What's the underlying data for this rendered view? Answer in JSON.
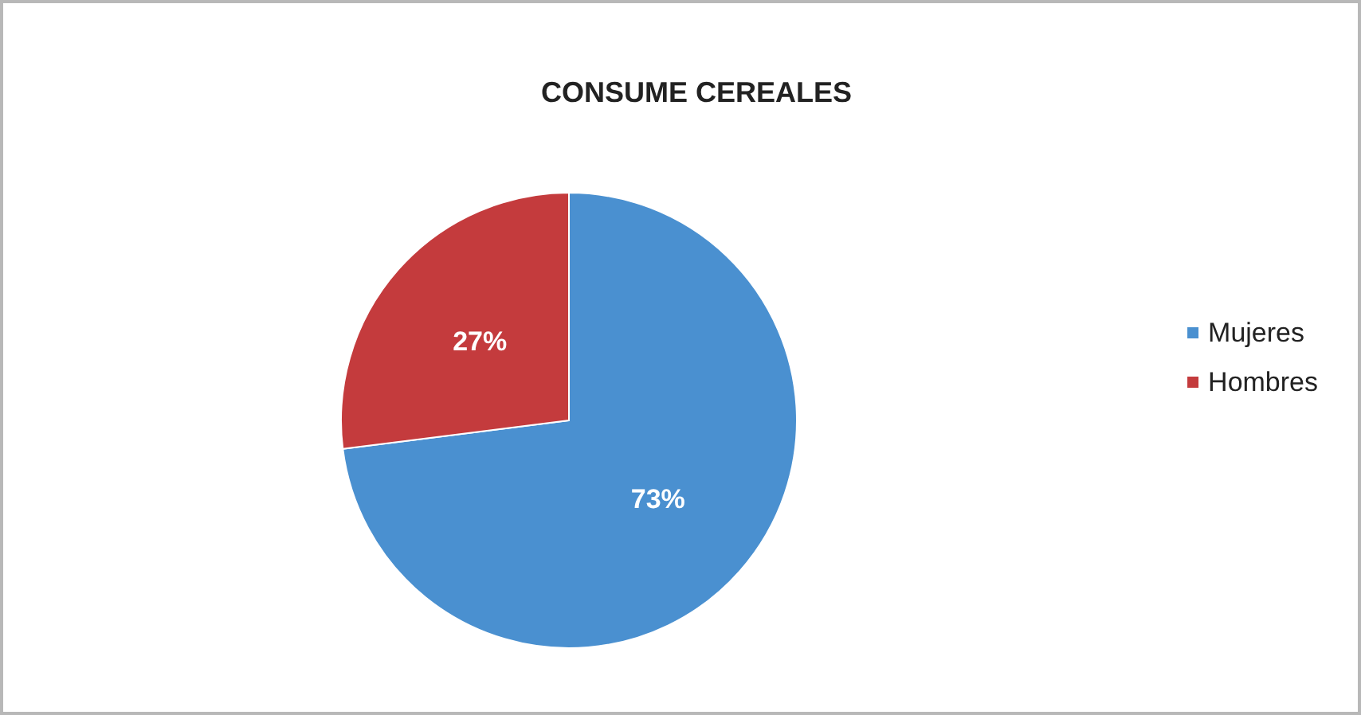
{
  "chart_data": {
    "type": "pie",
    "title": "CONSUME CEREALES",
    "categories": [
      "Mujeres",
      "Hombres"
    ],
    "values": [
      73,
      27
    ],
    "colors": [
      "#4a90d0",
      "#c43b3d"
    ],
    "value_labels": [
      "73%",
      "27%"
    ],
    "legend": "right"
  }
}
